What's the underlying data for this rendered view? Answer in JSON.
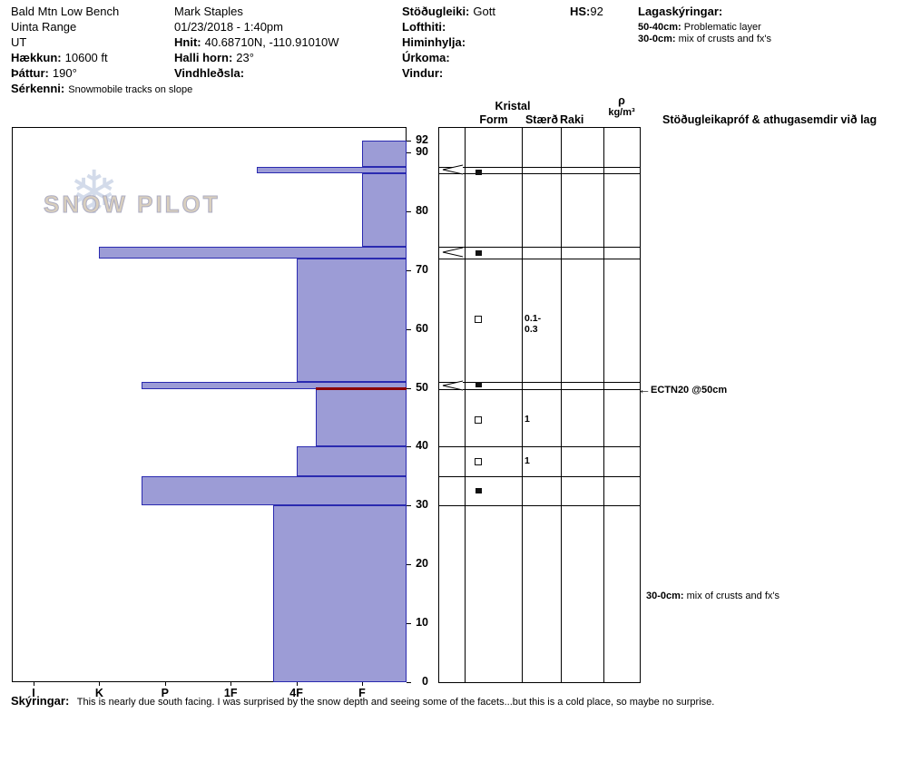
{
  "colors": {
    "bar_fill": "#9c9cd6",
    "bar_stroke": "#2a2ab0",
    "weak_layer": "#8b0000",
    "grid": "#000000"
  },
  "header": {
    "site": "Bald Mtn Low Bench",
    "range": "Uinta Range",
    "state": "UT",
    "elevation_label": "Hækkun:",
    "elevation_value": "10600 ft",
    "aspect_label": "Þáttur:",
    "aspect_value": "190°",
    "special_label": "Sérkenni:",
    "special_value": "Snowmobile tracks on slope",
    "observer": "Mark Staples",
    "datetime": "01/23/2018 - 1:40pm",
    "coords_label": "Hnit:",
    "coords_value": "40.68710N, -110.91010W",
    "slope_label": "Halli horn:",
    "slope_value": "23°",
    "windload_label": "Vindhleðsla:",
    "stability_label": "Stöðugleiki:",
    "stability_value": "Gott",
    "airtemp_label": "Lofthiti:",
    "sky_label": "Himinhylja:",
    "precip_label": "Úrkoma:",
    "wind_label": "Vindur:",
    "hs_label": "HS:",
    "hs_value": "92",
    "layer_comments_label": "Lagaskýringar:",
    "layer_comments": [
      {
        "range": "50-40cm:",
        "text": "Problematic layer"
      },
      {
        "range": "30-0cm:",
        "text": "mix of crusts and fx's"
      }
    ]
  },
  "logo": {
    "snowflake_icon": "❄",
    "text": "SNOW PILOT"
  },
  "panel": {
    "kristal_label": "Kristal",
    "form_label": "Form",
    "size_label": "Stærð",
    "moisture_label": "Raki",
    "density_label": "ρ",
    "density_unit": "kg/m³",
    "tests_header": "Stöðugleikapróf & athugasemdir við lag",
    "left_arrow_icon": "←"
  },
  "chart_data": {
    "type": "bar",
    "subtype": "snow-profile-hardness",
    "hs_cm": 92,
    "depth_ticks": [
      0,
      10,
      20,
      30,
      40,
      50,
      60,
      70,
      80,
      90,
      92
    ],
    "hardness_ticks": [
      "I",
      "K",
      "P",
      "1F",
      "4F",
      "F"
    ],
    "hardness_code_map": {
      "F": 1,
      "4F": 2,
      "1F": 3,
      "P": 4,
      "K": 5,
      "I": 6
    },
    "layers": [
      {
        "top_cm": 92,
        "bottom_cm": 87.5,
        "hardness": "F",
        "hardness_code": 1
      },
      {
        "top_cm": 87.5,
        "bottom_cm": 86.5,
        "hardness": "1F-",
        "hardness_code": 2.6,
        "flag": true
      },
      {
        "top_cm": 86.5,
        "bottom_cm": 74,
        "hardness": "F",
        "hardness_code": 1
      },
      {
        "top_cm": 74,
        "bottom_cm": 72,
        "hardness": "K",
        "hardness_code": 5,
        "flag": true
      },
      {
        "top_cm": 72,
        "bottom_cm": 51,
        "hardness": "4F",
        "hardness_code": 2
      },
      {
        "top_cm": 51,
        "bottom_cm": 49.8,
        "hardness": "P+",
        "hardness_code": 4.35,
        "flag": true
      },
      {
        "top_cm": 49.8,
        "bottom_cm": 40,
        "hardness": "4F-",
        "hardness_code": 1.7
      },
      {
        "top_cm": 40,
        "bottom_cm": 35,
        "hardness": "4F",
        "hardness_code": 2
      },
      {
        "top_cm": 35,
        "bottom_cm": 30,
        "hardness": "P+",
        "hardness_code": 4.35
      },
      {
        "top_cm": 30,
        "bottom_cm": 0,
        "hardness": "4F+",
        "hardness_code": 2.35
      }
    ],
    "weak_layer_line": {
      "depth_cm": 50
    },
    "grains": [
      {
        "depth_cm": 86.6,
        "symbol": "filled-square",
        "size": ""
      },
      {
        "depth_cm": 72.9,
        "symbol": "filled-square",
        "size": ""
      },
      {
        "depth_cm": 61.6,
        "symbol": "open-square",
        "size": "0.1-0.3"
      },
      {
        "depth_cm": 50.5,
        "symbol": "filled-square",
        "size": ""
      },
      {
        "depth_cm": 44.5,
        "symbol": "open-square",
        "size": "1"
      },
      {
        "depth_cm": 37.4,
        "symbol": "open-square",
        "size": "1"
      },
      {
        "depth_cm": 32.5,
        "symbol": "filled-square",
        "size": ""
      }
    ],
    "tests": [
      {
        "depth_cm": 50,
        "label": "ECTN20 @50cm"
      }
    ],
    "notes": [
      {
        "depth_cm": 14.5,
        "range": "30-0cm:",
        "text": "mix of crusts and fx's"
      }
    ]
  },
  "footer": {
    "label": "Skýringar:",
    "text": "This is nearly due south facing. I was surprised by the snow depth and seeing some of the facets...but this is a cold place, so maybe no surprise."
  }
}
